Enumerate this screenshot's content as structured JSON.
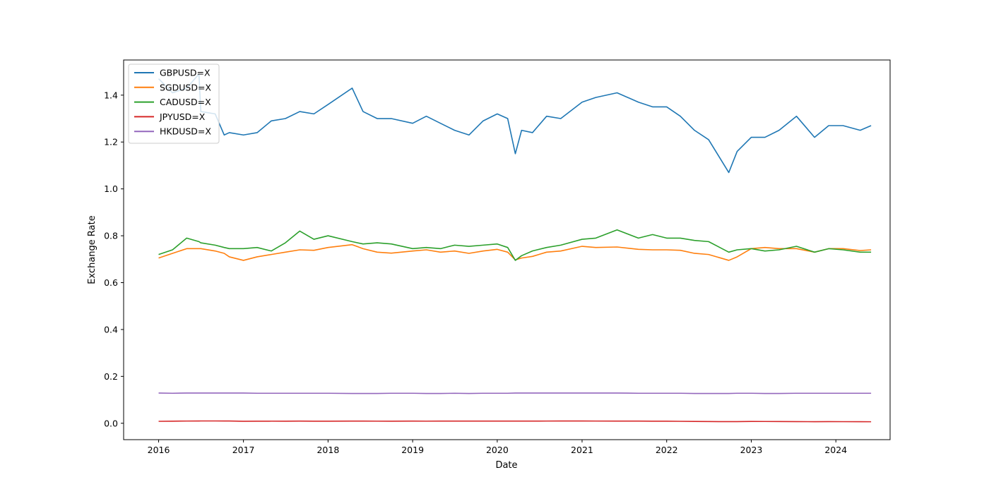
{
  "chart_data": {
    "type": "line",
    "title": "",
    "xlabel": "Date",
    "ylabel": "Exchange Rate",
    "xlim": [
      "2015-08-03",
      "2024-08-22"
    ],
    "ylim": [
      -0.07,
      1.55
    ],
    "x_ticks": [
      "2016",
      "2017",
      "2018",
      "2019",
      "2020",
      "2021",
      "2022",
      "2023",
      "2024"
    ],
    "y_ticks": [
      "0.0",
      "0.2",
      "0.4",
      "0.6",
      "0.8",
      "1.0",
      "1.2",
      "1.4"
    ],
    "grid": false,
    "legend_position": "top-left",
    "x": [
      "2016-01-01",
      "2016-03-01",
      "2016-05-01",
      "2016-06-23",
      "2016-07-01",
      "2016-09-01",
      "2016-10-10",
      "2016-11-01",
      "2017-01-01",
      "2017-03-01",
      "2017-05-01",
      "2017-07-01",
      "2017-09-01",
      "2017-11-01",
      "2018-01-01",
      "2018-04-15",
      "2018-06-01",
      "2018-08-01",
      "2018-10-01",
      "2019-01-01",
      "2019-03-01",
      "2019-05-01",
      "2019-07-01",
      "2019-09-01",
      "2019-11-01",
      "2020-01-01",
      "2020-02-15",
      "2020-03-19",
      "2020-04-15",
      "2020-06-01",
      "2020-08-01",
      "2020-10-01",
      "2021-01-01",
      "2021-03-01",
      "2021-06-01",
      "2021-09-01",
      "2021-11-01",
      "2022-01-01",
      "2022-03-01",
      "2022-05-01",
      "2022-07-01",
      "2022-09-26",
      "2022-11-01",
      "2023-01-01",
      "2023-03-01",
      "2023-05-01",
      "2023-07-15",
      "2023-10-01",
      "2023-12-01",
      "2024-02-01",
      "2024-04-15",
      "2024-06-01"
    ],
    "series": [
      {
        "name": "GBPUSD=X",
        "color": "#1f77b4",
        "values": [
          1.47,
          1.41,
          1.43,
          1.49,
          1.33,
          1.32,
          1.23,
          1.24,
          1.23,
          1.24,
          1.29,
          1.3,
          1.33,
          1.32,
          1.36,
          1.43,
          1.33,
          1.3,
          1.3,
          1.28,
          1.31,
          1.28,
          1.25,
          1.23,
          1.29,
          1.32,
          1.3,
          1.15,
          1.25,
          1.24,
          1.31,
          1.3,
          1.37,
          1.39,
          1.41,
          1.37,
          1.35,
          1.35,
          1.31,
          1.25,
          1.21,
          1.07,
          1.16,
          1.22,
          1.22,
          1.25,
          1.31,
          1.22,
          1.27,
          1.27,
          1.25,
          1.27
        ]
      },
      {
        "name": "SGDUSD=X",
        "color": "#ff7f0e",
        "values": [
          0.705,
          0.725,
          0.745,
          0.745,
          0.745,
          0.735,
          0.725,
          0.71,
          0.695,
          0.71,
          0.72,
          0.73,
          0.74,
          0.738,
          0.75,
          0.762,
          0.745,
          0.73,
          0.726,
          0.735,
          0.74,
          0.73,
          0.735,
          0.725,
          0.735,
          0.742,
          0.73,
          0.697,
          0.705,
          0.712,
          0.73,
          0.735,
          0.755,
          0.75,
          0.752,
          0.742,
          0.74,
          0.74,
          0.738,
          0.725,
          0.72,
          0.695,
          0.71,
          0.745,
          0.75,
          0.745,
          0.745,
          0.73,
          0.745,
          0.745,
          0.737,
          0.74
        ]
      },
      {
        "name": "CADUSD=X",
        "color": "#2ca02c",
        "values": [
          0.72,
          0.74,
          0.79,
          0.775,
          0.77,
          0.76,
          0.75,
          0.745,
          0.745,
          0.75,
          0.735,
          0.77,
          0.82,
          0.785,
          0.8,
          0.775,
          0.765,
          0.77,
          0.765,
          0.745,
          0.75,
          0.745,
          0.76,
          0.755,
          0.76,
          0.765,
          0.75,
          0.695,
          0.715,
          0.735,
          0.75,
          0.76,
          0.785,
          0.79,
          0.825,
          0.79,
          0.805,
          0.79,
          0.79,
          0.78,
          0.775,
          0.73,
          0.74,
          0.745,
          0.735,
          0.74,
          0.755,
          0.73,
          0.745,
          0.74,
          0.73,
          0.73
        ]
      },
      {
        "name": "JPYUSD=X",
        "color": "#d62728",
        "values": [
          0.0083,
          0.0088,
          0.0094,
          0.0097,
          0.0098,
          0.0098,
          0.0096,
          0.0095,
          0.0086,
          0.0088,
          0.009,
          0.0089,
          0.0091,
          0.0088,
          0.0089,
          0.0093,
          0.0091,
          0.009,
          0.0088,
          0.0091,
          0.009,
          0.0091,
          0.0093,
          0.0092,
          0.0092,
          0.0092,
          0.0091,
          0.0093,
          0.0093,
          0.0093,
          0.0094,
          0.0095,
          0.0097,
          0.0094,
          0.0091,
          0.0091,
          0.0088,
          0.0087,
          0.0083,
          0.0078,
          0.0073,
          0.0069,
          0.0071,
          0.0076,
          0.0075,
          0.0073,
          0.007,
          0.0067,
          0.0069,
          0.0068,
          0.0065,
          0.0064
        ]
      },
      {
        "name": "HKDUSD=X",
        "color": "#9467bd",
        "values": [
          0.129,
          0.128,
          0.129,
          0.129,
          0.129,
          0.129,
          0.129,
          0.129,
          0.129,
          0.128,
          0.128,
          0.128,
          0.128,
          0.128,
          0.128,
          0.127,
          0.127,
          0.127,
          0.128,
          0.128,
          0.127,
          0.127,
          0.128,
          0.127,
          0.128,
          0.128,
          0.128,
          0.129,
          0.129,
          0.129,
          0.129,
          0.129,
          0.129,
          0.129,
          0.129,
          0.128,
          0.128,
          0.128,
          0.128,
          0.127,
          0.127,
          0.127,
          0.128,
          0.128,
          0.127,
          0.127,
          0.128,
          0.128,
          0.128,
          0.128,
          0.128,
          0.128
        ]
      }
    ]
  }
}
